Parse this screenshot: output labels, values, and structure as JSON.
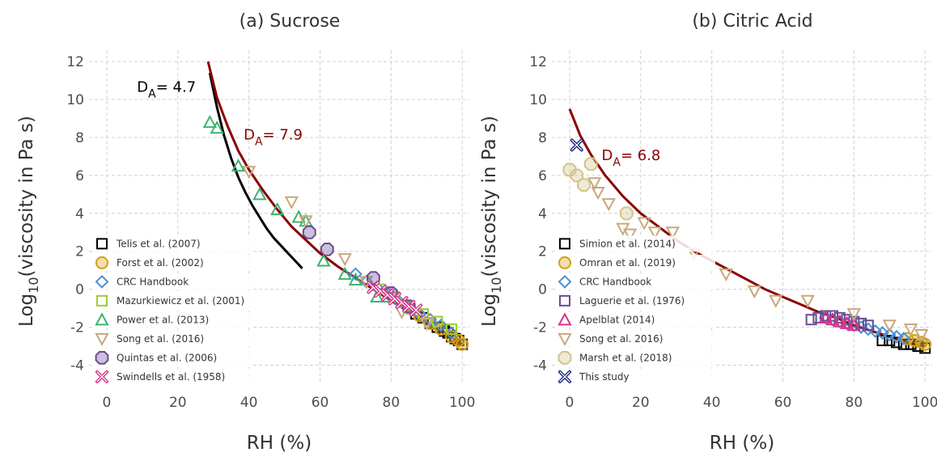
{
  "chart_data": [
    {
      "type": "scatter",
      "title": "(a) Sucrose",
      "xlabel": "RH (%)",
      "ylabel": "Log10(viscosity in Pa s)",
      "xlim": [
        -5,
        102
      ],
      "ylim": [
        -5,
        12.6
      ],
      "xticks": [
        0,
        20,
        40,
        60,
        80,
        100
      ],
      "yticks": [
        -4,
        -2,
        0,
        2,
        4,
        6,
        8,
        10,
        12
      ],
      "grid": true,
      "legend_position": "bottom-left",
      "lines": [
        {
          "name": "DA = 4.7",
          "label_main": "D",
          "label_sub": "A",
          "label_value": "= 4.7",
          "label_at": [
            8.5,
            10.4
          ],
          "color": "#000000",
          "x": [
            29,
            31,
            33,
            35,
            37,
            39,
            41,
            43,
            45,
            47,
            49,
            51,
            53,
            55
          ],
          "y": [
            11.4,
            9.6,
            8.1,
            6.9,
            5.9,
            5.1,
            4.4,
            3.8,
            3.2,
            2.7,
            2.3,
            1.9,
            1.5,
            1.1
          ]
        },
        {
          "name": "DA = 7.9",
          "label_main": "D",
          "label_sub": "A",
          "label_value": "= 7.9",
          "label_at": [
            38.5,
            7.9
          ],
          "color": "#8b0000",
          "x": [
            28.5,
            31,
            34,
            37,
            40,
            44,
            48,
            52,
            56,
            60,
            65,
            70,
            75,
            80,
            85,
            90,
            95,
            100
          ],
          "y": [
            12,
            10.1,
            8.6,
            7.3,
            6.3,
            5.2,
            4.2,
            3.3,
            2.6,
            1.9,
            1.2,
            0.6,
            0,
            -0.6,
            -1.2,
            -1.8,
            -2.3,
            -2.9
          ]
        }
      ],
      "series": [
        {
          "name": "Telis et al. (2007)",
          "marker": "square",
          "color": "#000000",
          "x": [
            87,
            89,
            91,
            93,
            95,
            96,
            97,
            98,
            99,
            100
          ],
          "y": [
            -1.3,
            -1.5,
            -1.8,
            -2,
            -2.2,
            -2.3,
            -2.5,
            -2.6,
            -2.7,
            -2.9
          ]
        },
        {
          "name": "Forst et al. (2002)",
          "marker": "circle",
          "color": "#d4a017",
          "x": [
            85,
            88,
            91,
            94,
            97,
            99,
            100
          ],
          "y": [
            -1,
            -1.4,
            -1.8,
            -2.1,
            -2.5,
            -2.7,
            -2.9
          ]
        },
        {
          "name": "CRC Handbook",
          "marker": "diamond",
          "color": "#4a90d9",
          "x": [
            70,
            73,
            76,
            79,
            82,
            85,
            88,
            91,
            94,
            97
          ],
          "y": [
            0.8,
            0.4,
            0.1,
            -0.2,
            -0.6,
            -0.9,
            -1.3,
            -1.6,
            -1.9,
            -2.3
          ]
        },
        {
          "name": "Mazurkiewicz et al. (2001)",
          "marker": "square",
          "color": "#9acd32",
          "x": [
            77,
            81,
            85,
            89,
            93,
            97
          ],
          "y": [
            0,
            -0.4,
            -0.9,
            -1.3,
            -1.7,
            -2.1
          ]
        },
        {
          "name": "Power et al. (2013)",
          "marker": "triangle-up",
          "color": "#3cb371",
          "x": [
            29,
            31,
            37,
            43,
            48,
            54,
            56,
            61,
            67,
            70,
            76,
            79
          ],
          "y": [
            8.8,
            8.5,
            6.5,
            5,
            4.2,
            3.8,
            3.6,
            1.5,
            0.8,
            0.5,
            -0.4,
            -0.4
          ]
        },
        {
          "name": "Song et al. (2016)",
          "marker": "triangle-down",
          "color": "#c8a87d",
          "x": [
            40,
            52,
            56,
            67,
            73,
            80,
            83,
            90
          ],
          "y": [
            6.2,
            4.6,
            3.6,
            1.6,
            0.4,
            -0.4,
            -1.2,
            -1.8
          ]
        },
        {
          "name": "Quintas et al. (2006)",
          "marker": "octagon",
          "color": "#6a4c93",
          "x": [
            57,
            62,
            75,
            80,
            85
          ],
          "y": [
            3,
            2.1,
            0.6,
            -0.2,
            -0.9
          ]
        },
        {
          "name": "Swindells et al. (1958)",
          "marker": "x",
          "color": "#d6338a",
          "x": [
            75,
            77,
            79,
            81,
            83,
            85,
            87
          ],
          "y": [
            0.1,
            -0.1,
            -0.3,
            -0.5,
            -0.7,
            -0.9,
            -1.1
          ]
        }
      ]
    },
    {
      "type": "scatter",
      "title": "(b) Citric Acid",
      "xlabel": "RH (%)",
      "ylabel": "Log10(viscosity in Pa s)",
      "xlim": [
        -5,
        102
      ],
      "ylim": [
        -5,
        12.6
      ],
      "xticks": [
        0,
        20,
        40,
        60,
        80,
        100
      ],
      "yticks": [
        -4,
        -2,
        0,
        2,
        4,
        6,
        8,
        10,
        12
      ],
      "grid": true,
      "legend_position": "bottom-left",
      "lines": [
        {
          "name": "DA = 6.8",
          "label_main": "D",
          "label_sub": "A",
          "label_value": "= 6.8",
          "label_at": [
            9,
            6.8
          ],
          "color": "#8b0000",
          "x": [
            0,
            3,
            6,
            10,
            15,
            20,
            25,
            30,
            35,
            40,
            45,
            50,
            55,
            60,
            65,
            70,
            75,
            80,
            85,
            90,
            95,
            100
          ],
          "y": [
            9.5,
            8.1,
            7.1,
            6,
            4.9,
            4,
            3.3,
            2.6,
            2,
            1.5,
            1,
            0.5,
            0,
            -0.4,
            -0.8,
            -1.2,
            -1.5,
            -1.9,
            -2.2,
            -2.5,
            -2.8,
            -3
          ]
        }
      ],
      "series": [
        {
          "name": "Simion et al. (2014)",
          "marker": "square",
          "color": "#000000",
          "x": [
            88,
            90,
            92,
            94,
            96,
            98,
            100
          ],
          "y": [
            -2.7,
            -2.7,
            -2.8,
            -2.9,
            -2.9,
            -3,
            -3.1
          ]
        },
        {
          "name": "Omran et al. (2019)",
          "marker": "circle",
          "color": "#d4a017",
          "x": [
            95,
            97,
            99,
            100
          ],
          "y": [
            -2.6,
            -2.7,
            -2.8,
            -2.9
          ]
        },
        {
          "name": "CRC Handbook",
          "marker": "diamond",
          "color": "#4a90d9",
          "x": [
            72,
            74,
            76,
            78,
            80,
            82,
            84,
            86,
            88,
            90,
            92,
            94
          ],
          "y": [
            -1.5,
            -1.6,
            -1.7,
            -1.8,
            -1.9,
            -2,
            -2.1,
            -2.2,
            -2.3,
            -2.4,
            -2.5,
            -2.6
          ]
        },
        {
          "name": "Laguerie et al. (1976)",
          "marker": "square",
          "color": "#6a4c93",
          "x": [
            68,
            70,
            72,
            74,
            76,
            78,
            80,
            82,
            84
          ],
          "y": [
            -1.6,
            -1.5,
            -1.4,
            -1.4,
            -1.5,
            -1.6,
            -1.7,
            -1.8,
            -1.9
          ]
        },
        {
          "name": "Apelblat (2014)",
          "marker": "triangle-up",
          "color": "#d6338a",
          "x": [
            72,
            74,
            76,
            78,
            80
          ],
          "y": [
            -1.5,
            -1.6,
            -1.7,
            -1.8,
            -1.9
          ]
        },
        {
          "name": "Song et al. 2016)",
          "marker": "triangle-down",
          "color": "#c8a87d",
          "x": [
            7,
            8,
            11,
            15,
            17,
            21,
            24,
            29,
            35,
            44,
            52,
            58,
            67,
            80,
            90,
            96,
            99
          ],
          "y": [
            5.6,
            5.1,
            4.5,
            3.2,
            2.9,
            3.5,
            3,
            3,
            1.9,
            0.8,
            -0.1,
            -0.6,
            -0.6,
            -1.3,
            -1.9,
            -2.1,
            -2.4
          ]
        },
        {
          "name": "Marsh et al. (2018)",
          "marker": "octagon",
          "color": "#d2c48a",
          "x": [
            0,
            2,
            4,
            6,
            16
          ],
          "y": [
            6.3,
            6,
            5.5,
            6.6,
            4
          ]
        },
        {
          "name": "This study",
          "marker": "x",
          "color": "#1a237e",
          "x": [
            2
          ],
          "y": [
            7.6
          ]
        }
      ]
    }
  ]
}
